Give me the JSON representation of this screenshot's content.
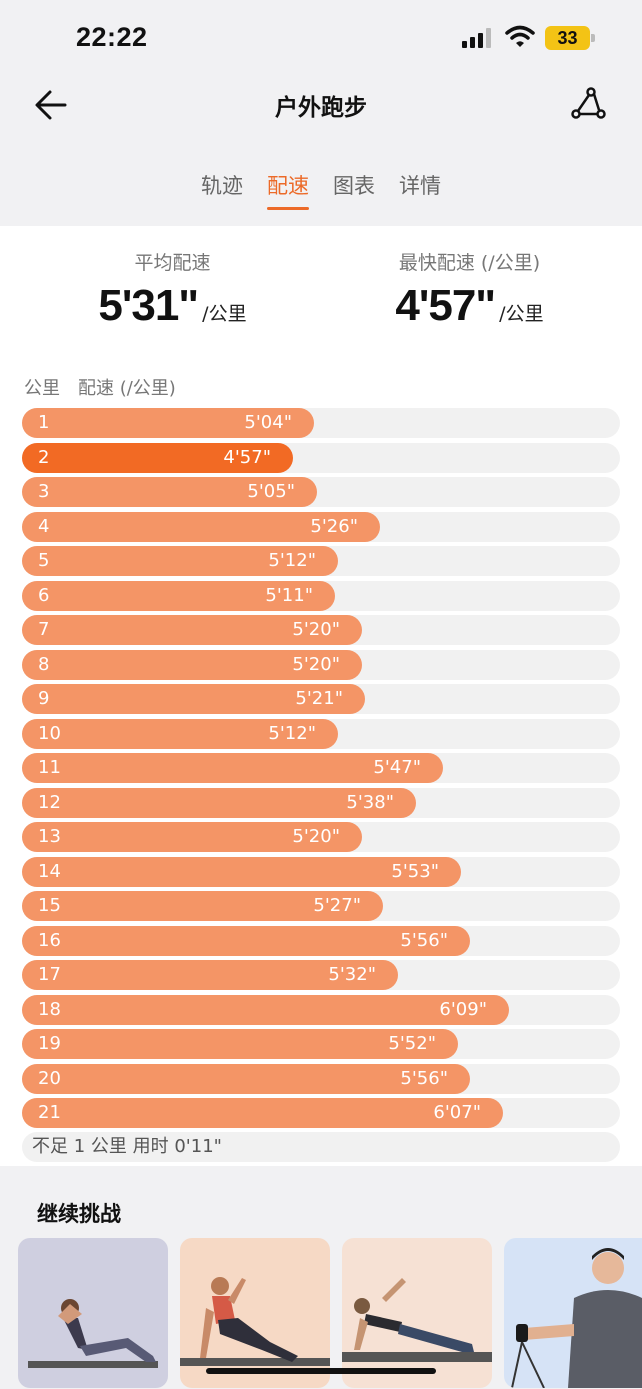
{
  "status_bar": {
    "time": "22:22",
    "battery": "33"
  },
  "header": {
    "title": "户外跑步"
  },
  "tabs": [
    {
      "label": "轨迹",
      "active": false
    },
    {
      "label": "配速",
      "active": true
    },
    {
      "label": "图表",
      "active": false
    },
    {
      "label": "详情",
      "active": false
    }
  ],
  "summary": {
    "avg_label": "平均配速",
    "avg_value": "5'31\"",
    "fastest_label": "最快配速 (/公里)",
    "fastest_value": "4'57\"",
    "unit": "/公里"
  },
  "table": {
    "col_km": "公里",
    "col_pace": "配速 (/公里)",
    "rows": [
      {
        "km": "1",
        "pace": "5'04\"",
        "seconds": 304
      },
      {
        "km": "2",
        "pace": "4'57\"",
        "seconds": 297,
        "fastest": true
      },
      {
        "km": "3",
        "pace": "5'05\"",
        "seconds": 305
      },
      {
        "km": "4",
        "pace": "5'26\"",
        "seconds": 326
      },
      {
        "km": "5",
        "pace": "5'12\"",
        "seconds": 312
      },
      {
        "km": "6",
        "pace": "5'11\"",
        "seconds": 311
      },
      {
        "km": "7",
        "pace": "5'20\"",
        "seconds": 320
      },
      {
        "km": "8",
        "pace": "5'20\"",
        "seconds": 320
      },
      {
        "km": "9",
        "pace": "5'21\"",
        "seconds": 321
      },
      {
        "km": "10",
        "pace": "5'12\"",
        "seconds": 312
      },
      {
        "km": "11",
        "pace": "5'47\"",
        "seconds": 347
      },
      {
        "km": "12",
        "pace": "5'38\"",
        "seconds": 338
      },
      {
        "km": "13",
        "pace": "5'20\"",
        "seconds": 320
      },
      {
        "km": "14",
        "pace": "5'53\"",
        "seconds": 353
      },
      {
        "km": "15",
        "pace": "5'27\"",
        "seconds": 327
      },
      {
        "km": "16",
        "pace": "5'56\"",
        "seconds": 356
      },
      {
        "km": "17",
        "pace": "5'32\"",
        "seconds": 332
      },
      {
        "km": "18",
        "pace": "6'09\"",
        "seconds": 369
      },
      {
        "km": "19",
        "pace": "5'52\"",
        "seconds": 352
      },
      {
        "km": "20",
        "pace": "5'56\"",
        "seconds": 356
      },
      {
        "km": "21",
        "pace": "6'07\"",
        "seconds": 367
      }
    ],
    "remainder": "不足 1 公里 用时 0'11\""
  },
  "challenge": {
    "title": "继续挑战",
    "thumbnails": [
      "yoga-situp-thumb",
      "pilates-lunge-thumb",
      "side-plank-thumb",
      "resistance-band-thumb"
    ]
  },
  "colors": {
    "accent": "#ec6a28",
    "bar": "#f49566",
    "bar_fastest": "#f26a24",
    "track": "#f1f1f1"
  }
}
